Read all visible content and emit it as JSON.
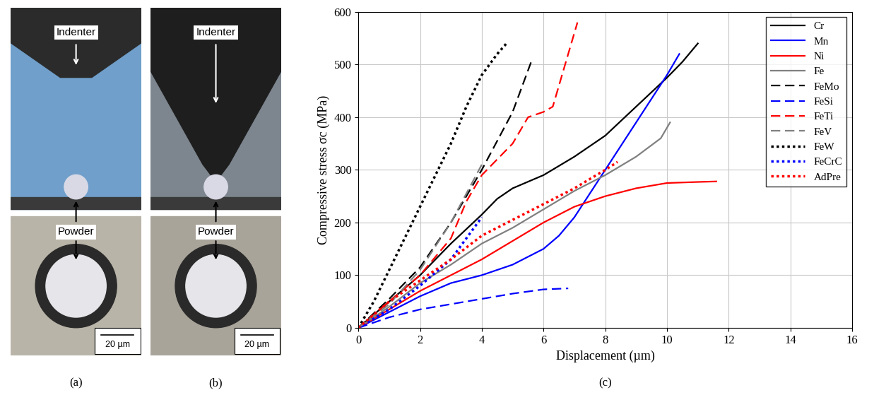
{
  "panels": [
    {
      "label": "(a)",
      "top_label": "Indenter",
      "bottom_label": "Powder",
      "scale_bar": "20 µm"
    },
    {
      "label": "(b)",
      "top_label": "Indenter",
      "bottom_label": "Powder",
      "scale_bar": "20 µm"
    }
  ],
  "chart_data": {
    "type": "line",
    "label": "(c)",
    "x_label": "Displacement (µm)",
    "y_label": "Compressive stress σc (MPa)",
    "xlim": [
      0,
      16
    ],
    "xticks": [
      0,
      2,
      4,
      6,
      8,
      10,
      12,
      14,
      16
    ],
    "ylim": [
      0,
      600
    ],
    "yticks": [
      0,
      100,
      200,
      300,
      400,
      500,
      600
    ],
    "grid": true,
    "legend": "upper right",
    "series": [
      {
        "name": "Cr",
        "color": "#000000",
        "line_style": "solid",
        "x": [
          0,
          1,
          2,
          3,
          4,
          4.5,
          5,
          6,
          7,
          8,
          9,
          10,
          10.5,
          11
        ],
        "values": [
          0,
          50,
          100,
          160,
          215,
          245,
          265,
          290,
          325,
          365,
          420,
          475,
          505,
          540
        ]
      },
      {
        "name": "Mn",
        "color": "#0000ff",
        "line_style": "solid",
        "x": [
          0,
          1,
          2,
          3,
          4,
          5,
          6,
          6.5,
          7,
          8,
          9,
          10,
          10.4
        ],
        "values": [
          0,
          30,
          60,
          85,
          100,
          120,
          150,
          175,
          210,
          300,
          390,
          480,
          520
        ]
      },
      {
        "name": "Ni",
        "color": "#ff0000",
        "line_style": "solid",
        "x": [
          0,
          1,
          2,
          3,
          4,
          5,
          6,
          7,
          8,
          9,
          10,
          11,
          11.6
        ],
        "values": [
          0,
          35,
          70,
          100,
          130,
          165,
          200,
          230,
          250,
          265,
          275,
          277,
          278
        ]
      },
      {
        "name": "Fe",
        "color": "#808080",
        "line_style": "solid",
        "x": [
          0,
          1,
          2,
          3,
          4,
          5,
          6,
          7,
          8,
          9,
          9.8,
          10.1
        ],
        "values": [
          0,
          40,
          85,
          120,
          160,
          190,
          225,
          260,
          290,
          325,
          360,
          390
        ]
      },
      {
        "name": "FeMo",
        "color": "#000000",
        "line_style": "dashed",
        "x": [
          0,
          1,
          2,
          3,
          4,
          5,
          5.6
        ],
        "values": [
          0,
          55,
          115,
          200,
          300,
          410,
          505
        ]
      },
      {
        "name": "FeSi",
        "color": "#0000ff",
        "line_style": "dashed",
        "x": [
          0,
          1,
          2,
          3,
          4,
          5,
          6,
          6.8
        ],
        "values": [
          0,
          20,
          35,
          45,
          55,
          65,
          73,
          75
        ]
      },
      {
        "name": "FeTi",
        "color": "#ff0000",
        "line_style": "dashed",
        "x": [
          0,
          1,
          2,
          3,
          3.5,
          4,
          5,
          5.5,
          6,
          6.3,
          6.7,
          7.1
        ],
        "values": [
          0,
          50,
          100,
          170,
          240,
          290,
          350,
          400,
          410,
          420,
          500,
          580
        ]
      },
      {
        "name": "FeV",
        "color": "#808080",
        "line_style": "dashed",
        "x": [
          0,
          1,
          2,
          3,
          4
        ],
        "values": [
          0,
          45,
          110,
          200,
          310
        ]
      },
      {
        "name": "FeW",
        "color": "#000000",
        "line_style": "dotted",
        "x": [
          0,
          0.5,
          1,
          1.5,
          2,
          2.5,
          3,
          3.5,
          4,
          4.5,
          4.8
        ],
        "values": [
          0,
          50,
          110,
          170,
          230,
          290,
          350,
          420,
          480,
          520,
          540
        ]
      },
      {
        "name": "FeCrC",
        "color": "#0000ff",
        "line_style": "dotted",
        "x": [
          0,
          1,
          2,
          3,
          3.5,
          4
        ],
        "values": [
          0,
          35,
          80,
          130,
          170,
          210
        ]
      },
      {
        "name": "AdPre",
        "color": "#ff0000",
        "line_style": "dotted",
        "x": [
          0,
          1,
          2,
          3,
          4,
          5,
          6,
          7,
          8,
          8.4
        ],
        "values": [
          0,
          50,
          90,
          130,
          175,
          205,
          235,
          265,
          300,
          315
        ]
      }
    ]
  }
}
